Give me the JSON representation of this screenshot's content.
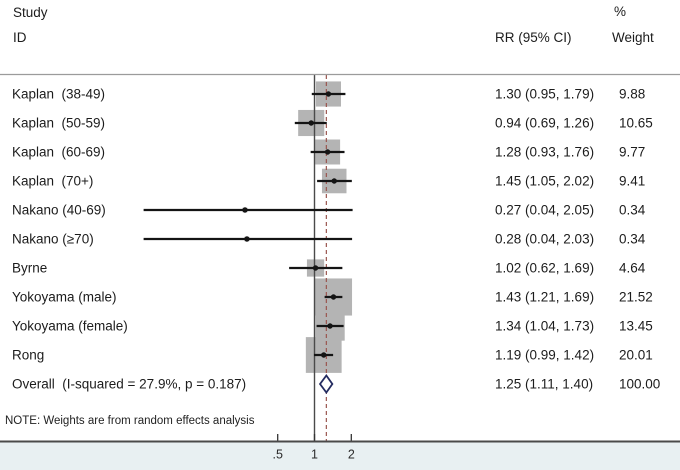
{
  "header": {
    "col_study_line1": "Study",
    "col_study_line2": "ID",
    "col_rr": "RR (95% CI)",
    "col_weight_line1": "%",
    "col_weight_line2": "Weight"
  },
  "note": "NOTE: Weights are from random effects analysis",
  "chart_data": {
    "type": "forest",
    "x_scale": "log",
    "xlabel": "",
    "x_ticks": [
      {
        "label": ".5",
        "value": 0.5
      },
      {
        "label": "1",
        "value": 1
      },
      {
        "label": "2",
        "value": 2
      }
    ],
    "null_value": 1,
    "colors": {
      "box": "#b4b4b4",
      "ci_line": "#141414",
      "null_line": "#4a4a4a",
      "overall_dashed": "#9a554f",
      "diamond": "#232b60",
      "axis_band": "#e8f0f2",
      "axis_line": "#4a4a4a",
      "separator": "#9b9b9b"
    },
    "studies": [
      {
        "label": "Kaplan  (38-49)",
        "rr": 1.3,
        "ci_low": 0.95,
        "ci_high": 1.79,
        "weight": 9.88,
        "rr_text": "1.30 (0.95, 1.79)",
        "weight_text": "9.88"
      },
      {
        "label": "Kaplan  (50-59)",
        "rr": 0.94,
        "ci_low": 0.69,
        "ci_high": 1.26,
        "weight": 10.65,
        "rr_text": "0.94 (0.69, 1.26)",
        "weight_text": "10.65"
      },
      {
        "label": "Kaplan  (60-69)",
        "rr": 1.28,
        "ci_low": 0.93,
        "ci_high": 1.76,
        "weight": 9.77,
        "rr_text": "1.28 (0.93, 1.76)",
        "weight_text": "9.77"
      },
      {
        "label": "Kaplan  (70+)",
        "rr": 1.45,
        "ci_low": 1.05,
        "ci_high": 2.02,
        "weight": 9.41,
        "rr_text": "1.45 (1.05, 2.02)",
        "weight_text": "9.41"
      },
      {
        "label": "Nakano (40-69)",
        "rr": 0.27,
        "ci_low": 0.04,
        "ci_high": 2.05,
        "weight": 0.34,
        "rr_text": "0.27 (0.04, 2.05)",
        "weight_text": "0.34"
      },
      {
        "label": "Nakano (≥70)",
        "rr": 0.28,
        "ci_low": 0.04,
        "ci_high": 2.03,
        "weight": 0.34,
        "rr_text": "0.28 (0.04, 2.03)",
        "weight_text": "0.34"
      },
      {
        "label": "Byrne",
        "rr": 1.02,
        "ci_low": 0.62,
        "ci_high": 1.69,
        "weight": 4.64,
        "rr_text": "1.02 (0.62, 1.69)",
        "weight_text": "4.64"
      },
      {
        "label": "Yokoyama (male)",
        "rr": 1.43,
        "ci_low": 1.21,
        "ci_high": 1.69,
        "weight": 21.52,
        "rr_text": "1.43 (1.21, 1.69)",
        "weight_text": "21.52"
      },
      {
        "label": "Yokoyama (female)",
        "rr": 1.34,
        "ci_low": 1.04,
        "ci_high": 1.73,
        "weight": 13.45,
        "rr_text": "1.34 (1.04, 1.73)",
        "weight_text": "13.45"
      },
      {
        "label": "Rong",
        "rr": 1.19,
        "ci_low": 0.99,
        "ci_high": 1.42,
        "weight": 20.01,
        "rr_text": "1.19 (0.99, 1.42)",
        "weight_text": "20.01"
      }
    ],
    "overall": {
      "label": "Overall  (I-squared = 27.9%, p = 0.187)",
      "rr": 1.25,
      "ci_low": 1.11,
      "ci_high": 1.4,
      "rr_text": "1.25 (1.11, 1.40)",
      "weight_text": "100.00"
    }
  }
}
